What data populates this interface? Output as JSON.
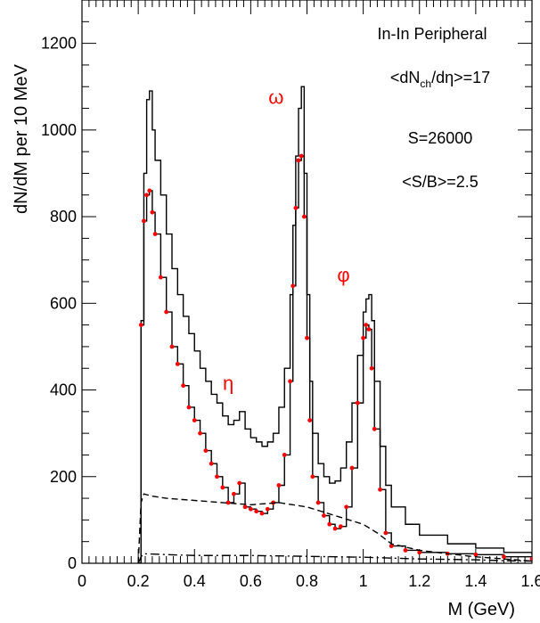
{
  "chart_data": {
    "type": "line",
    "xlabel": "M (GeV)",
    "ylabel": "dN/dM per 10 MeV",
    "xlim": [
      0,
      1.6
    ],
    "ylim": [
      0,
      1300
    ],
    "x_ticks": [
      "0",
      "0.2",
      "0.4",
      "0.6",
      "0.8",
      "1",
      "1.2",
      "1.4",
      "1.6"
    ],
    "y_ticks": [
      "0",
      "200",
      "400",
      "600",
      "800",
      "1000",
      "1200"
    ],
    "annotations": {
      "line1": "In-In Peripheral",
      "line2_main": "<dN",
      "line2_sub": "ch",
      "line2_rest": "/dη>=17",
      "line3": "S=26000",
      "line4": "<S/B>=2.5"
    },
    "peak_labels": [
      {
        "text": "ω",
        "x": 0.69,
        "y": 1060
      },
      {
        "text": "φ",
        "x": 0.93,
        "y": 650
      },
      {
        "text": "η",
        "x": 0.52,
        "y": 400
      }
    ],
    "series": [
      {
        "style": "solid-step",
        "color": "#000000",
        "x": [
          0.2,
          0.21,
          0.22,
          0.23,
          0.24,
          0.25,
          0.26,
          0.28,
          0.3,
          0.32,
          0.34,
          0.36,
          0.38,
          0.4,
          0.42,
          0.44,
          0.46,
          0.48,
          0.5,
          0.52,
          0.54,
          0.56,
          0.58,
          0.6,
          0.62,
          0.64,
          0.66,
          0.68,
          0.7,
          0.72,
          0.74,
          0.75,
          0.76,
          0.77,
          0.78,
          0.79,
          0.8,
          0.81,
          0.82,
          0.84,
          0.86,
          0.88,
          0.9,
          0.92,
          0.94,
          0.96,
          0.98,
          1.0,
          1.01,
          1.02,
          1.03,
          1.04,
          1.06,
          1.08,
          1.1,
          1.15,
          1.2,
          1.3,
          1.4,
          1.5,
          1.6
        ],
        "y": [
          0,
          560,
          900,
          1070,
          1090,
          1000,
          930,
          850,
          760,
          680,
          620,
          570,
          530,
          490,
          450,
          420,
          390,
          370,
          340,
          320,
          330,
          350,
          310,
          290,
          280,
          270,
          280,
          300,
          360,
          450,
          620,
          780,
          940,
          1050,
          1100,
          900,
          620,
          420,
          300,
          230,
          200,
          185,
          190,
          220,
          280,
          370,
          480,
          580,
          610,
          620,
          560,
          420,
          270,
          180,
          130,
          90,
          65,
          45,
          35,
          25,
          20
        ]
      },
      {
        "style": "solid-step-with-markers",
        "color": "#000000",
        "marker_color": "#ff0000",
        "x": [
          0.2,
          0.21,
          0.22,
          0.23,
          0.24,
          0.25,
          0.26,
          0.28,
          0.3,
          0.32,
          0.34,
          0.36,
          0.38,
          0.4,
          0.42,
          0.44,
          0.46,
          0.48,
          0.5,
          0.52,
          0.54,
          0.56,
          0.58,
          0.6,
          0.62,
          0.64,
          0.66,
          0.68,
          0.7,
          0.72,
          0.74,
          0.75,
          0.76,
          0.77,
          0.78,
          0.79,
          0.8,
          0.81,
          0.82,
          0.84,
          0.86,
          0.88,
          0.9,
          0.92,
          0.94,
          0.96,
          0.98,
          1.0,
          1.01,
          1.02,
          1.03,
          1.04,
          1.06,
          1.08,
          1.1,
          1.15,
          1.2,
          1.3,
          1.4,
          1.5,
          1.6
        ],
        "y": [
          0,
          550,
          790,
          850,
          860,
          810,
          760,
          660,
          580,
          500,
          460,
          410,
          360,
          330,
          300,
          260,
          230,
          200,
          175,
          140,
          160,
          185,
          130,
          125,
          120,
          115,
          125,
          140,
          180,
          250,
          420,
          640,
          820,
          930,
          940,
          800,
          520,
          330,
          200,
          140,
          110,
          90,
          80,
          85,
          130,
          220,
          370,
          520,
          550,
          540,
          450,
          310,
          170,
          70,
          40,
          30,
          25,
          22,
          20,
          15,
          10
        ]
      },
      {
        "style": "dashed",
        "color": "#000000",
        "x": [
          0.2,
          0.21,
          0.22,
          0.25,
          0.3,
          0.4,
          0.5,
          0.6,
          0.7,
          0.8,
          0.9,
          1.0,
          1.05,
          1.1,
          1.2,
          1.3,
          1.4,
          1.5,
          1.6
        ],
        "y": [
          0,
          140,
          160,
          155,
          150,
          145,
          140,
          135,
          140,
          130,
          110,
          90,
          70,
          45,
          30,
          22,
          15,
          10,
          5
        ]
      },
      {
        "style": "dash-dot",
        "color": "#000000",
        "x": [
          0.2,
          0.21,
          0.22,
          0.3,
          0.4,
          0.5,
          0.6,
          0.7,
          0.8,
          0.9,
          1.0,
          1.1,
          1.2,
          1.3,
          1.4,
          1.5,
          1.6
        ],
        "y": [
          0,
          15,
          22,
          20,
          18,
          18,
          18,
          17,
          16,
          15,
          14,
          12,
          10,
          9,
          8,
          6,
          5
        ]
      }
    ]
  }
}
